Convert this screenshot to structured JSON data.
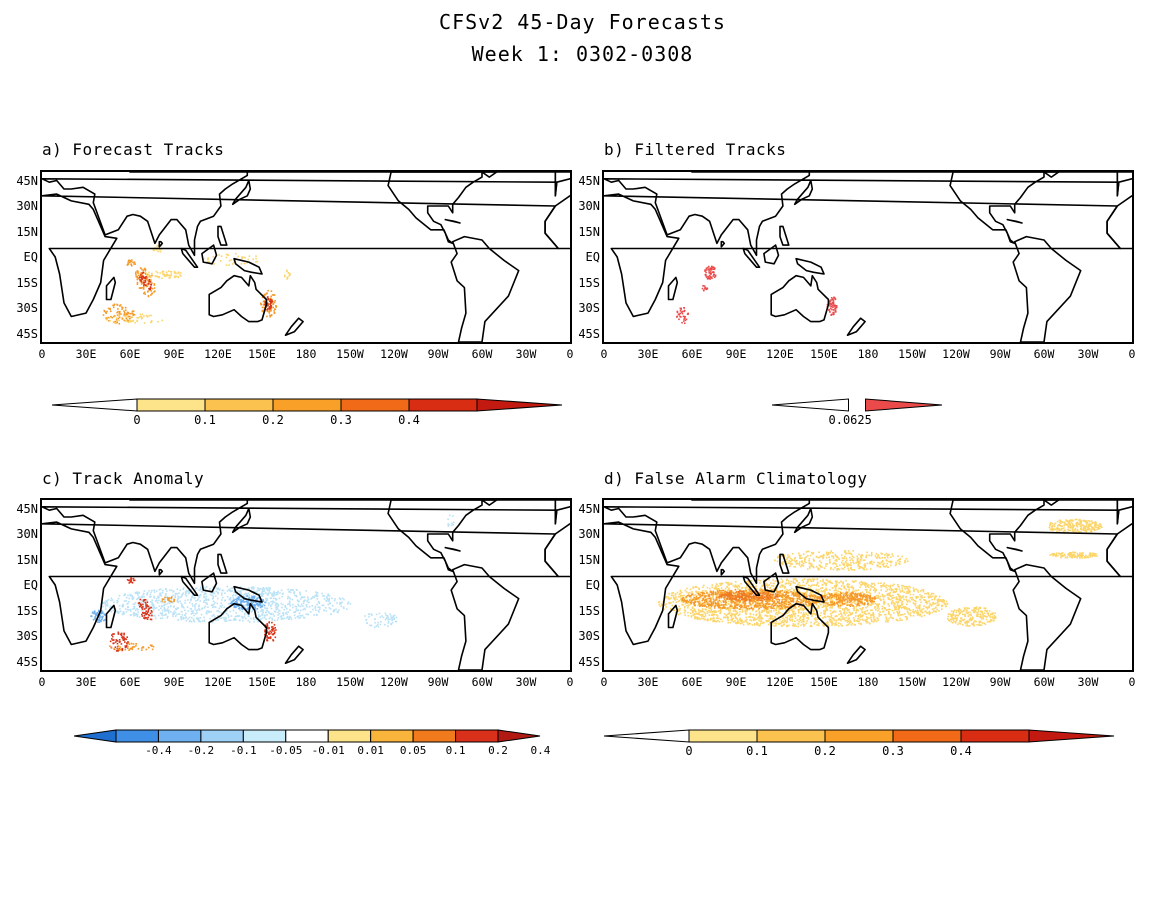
{
  "figure": {
    "title_line1": "CFSv2 45-Day Forecasts",
    "title_line2": "Week 1: 0302-0308"
  },
  "axes": {
    "lat_labels": [
      "45N",
      "30N",
      "15N",
      "EQ",
      "15S",
      "30S",
      "45S"
    ],
    "lon_labels": [
      "0",
      "30E",
      "60E",
      "90E",
      "120E",
      "150E",
      "180",
      "150W",
      "120W",
      "90W",
      "60W",
      "30W",
      "0"
    ]
  },
  "panels": [
    {
      "id": "a",
      "title": "a) Forecast Tracks",
      "colorbar": {
        "labels": [
          "0",
          "0.1",
          "0.2",
          "0.3",
          "0.4"
        ],
        "colors": [
          "#ffffff",
          "#fde38a",
          "#fcc24f",
          "#f9a028",
          "#f06a18",
          "#d82d12",
          "#c21a10"
        ]
      }
    },
    {
      "id": "b",
      "title": "b) Filtered Tracks",
      "colorbar": {
        "labels": [
          "0.0625"
        ],
        "colors": [
          "#ffffff",
          "#ea4a4a"
        ]
      }
    },
    {
      "id": "c",
      "title": "c) Track Anomaly",
      "colorbar": {
        "labels": [
          "-0.4",
          "-0.2",
          "-0.1",
          "-0.05",
          "-0.01",
          "0.01",
          "0.05",
          "0.1",
          "0.2",
          "0.4"
        ],
        "colors": [
          "#1f6fd0",
          "#3f8fe6",
          "#6fb0f0",
          "#9fd0f6",
          "#c8ecfa",
          "#ffffff",
          "#fde38a",
          "#f9b43c",
          "#f07a1c",
          "#d8301a",
          "#b01a12"
        ]
      }
    },
    {
      "id": "d",
      "title": "d) False Alarm Climatology",
      "colorbar": {
        "labels": [
          "0",
          "0.1",
          "0.2",
          "0.3",
          "0.4"
        ],
        "colors": [
          "#ffffff",
          "#fde38a",
          "#fcc24f",
          "#f9a028",
          "#f06a18",
          "#d82d12",
          "#c21a10"
        ]
      }
    }
  ]
}
